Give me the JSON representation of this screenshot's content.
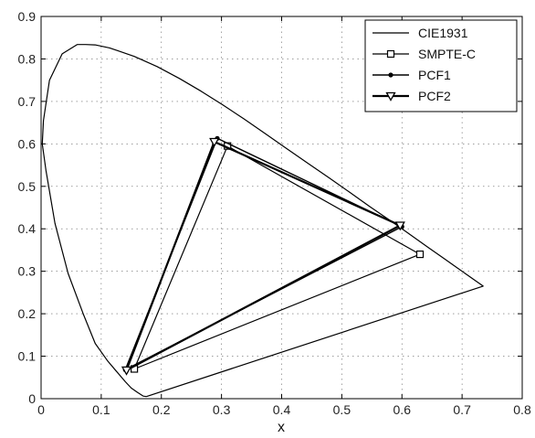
{
  "chart_data": {
    "type": "line",
    "title": "",
    "xlabel": "x",
    "ylabel": "",
    "xlim": [
      0,
      0.8
    ],
    "ylim": [
      0,
      0.9
    ],
    "x_ticks": [
      "0",
      "0.1",
      "0.2",
      "0.3",
      "0.4",
      "0.5",
      "0.6",
      "0.7",
      "0.8"
    ],
    "y_ticks": [
      "0",
      "0.1",
      "0.2",
      "0.3",
      "0.4",
      "0.5",
      "0.6",
      "0.7",
      "0.8",
      "0.9"
    ],
    "grid": true,
    "legend_position": "top-right",
    "series": [
      {
        "name": "CIE1931",
        "marker": "none",
        "points": [
          [
            0.175,
            0.005
          ],
          [
            0.17,
            0.006
          ],
          [
            0.16,
            0.015
          ],
          [
            0.15,
            0.025
          ],
          [
            0.14,
            0.04
          ],
          [
            0.125,
            0.065
          ],
          [
            0.11,
            0.09
          ],
          [
            0.09,
            0.13
          ],
          [
            0.07,
            0.2
          ],
          [
            0.045,
            0.295
          ],
          [
            0.023,
            0.413
          ],
          [
            0.008,
            0.538
          ],
          [
            0.002,
            0.6
          ],
          [
            0.004,
            0.655
          ],
          [
            0.014,
            0.75
          ],
          [
            0.035,
            0.812
          ],
          [
            0.06,
            0.834
          ],
          [
            0.074,
            0.834
          ],
          [
            0.09,
            0.833
          ],
          [
            0.114,
            0.826
          ],
          [
            0.155,
            0.806
          ],
          [
            0.193,
            0.782
          ],
          [
            0.23,
            0.754
          ],
          [
            0.266,
            0.724
          ],
          [
            0.302,
            0.692
          ],
          [
            0.337,
            0.659
          ],
          [
            0.373,
            0.624
          ],
          [
            0.408,
            0.589
          ],
          [
            0.444,
            0.554
          ],
          [
            0.479,
            0.52
          ],
          [
            0.512,
            0.487
          ],
          [
            0.547,
            0.452
          ],
          [
            0.581,
            0.419
          ],
          [
            0.614,
            0.386
          ],
          [
            0.644,
            0.356
          ],
          [
            0.67,
            0.33
          ],
          [
            0.692,
            0.308
          ],
          [
            0.735,
            0.265
          ],
          [
            0.175,
            0.005
          ]
        ]
      },
      {
        "name": "SMPTE-C",
        "marker": "square",
        "points": [
          [
            0.63,
            0.34
          ],
          [
            0.31,
            0.595
          ],
          [
            0.155,
            0.07
          ],
          [
            0.63,
            0.34
          ]
        ]
      },
      {
        "name": "PCF1",
        "marker": "dot",
        "points": [
          [
            0.6,
            0.405
          ],
          [
            0.293,
            0.613
          ],
          [
            0.14,
            0.068
          ],
          [
            0.6,
            0.405
          ]
        ]
      },
      {
        "name": "PCF2",
        "marker": "triangle-down",
        "points": [
          [
            0.597,
            0.408
          ],
          [
            0.288,
            0.605
          ],
          [
            0.142,
            0.067
          ],
          [
            0.597,
            0.408
          ]
        ]
      }
    ]
  }
}
